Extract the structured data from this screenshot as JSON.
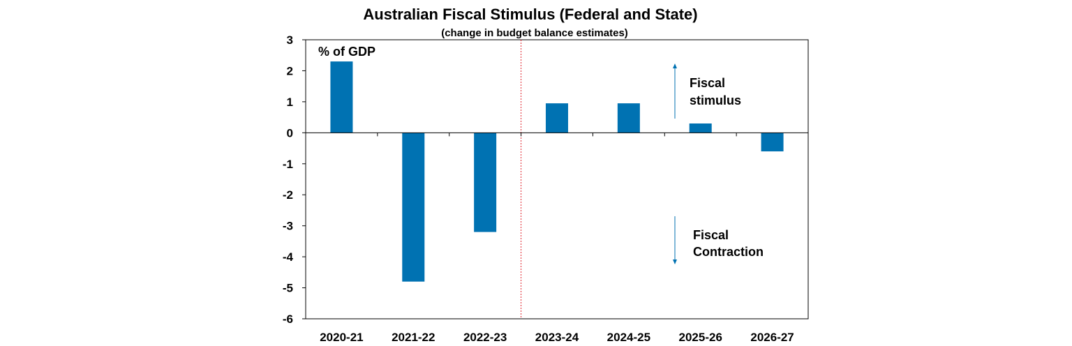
{
  "chart_data": {
    "type": "bar",
    "title": "Australian Fiscal Stimulus (Federal and State)",
    "subtitle": "(change in budget balance estimates)",
    "ylabel": "% of GDP",
    "categories": [
      "2020-21",
      "2021-22",
      "2022-23",
      "2023-24",
      "2024-25",
      "2025-26",
      "2026-27"
    ],
    "values": [
      2.3,
      -4.8,
      -3.2,
      0.95,
      0.95,
      0.3,
      -0.6
    ],
    "ylim": [
      -6,
      3
    ],
    "yticks": [
      "3",
      "2",
      "1",
      "0",
      "-1",
      "-2",
      "-3",
      "-4",
      "-5",
      "-6"
    ],
    "bar_color": "#0072B2",
    "grid": false,
    "divider": {
      "after_category": "2022-23",
      "style": "dotted",
      "color": "#e0202a"
    },
    "annotations": {
      "stimulus": [
        "Fiscal",
        "stimulus"
      ],
      "contraction": [
        "Fiscal",
        "Contraction"
      ]
    }
  }
}
